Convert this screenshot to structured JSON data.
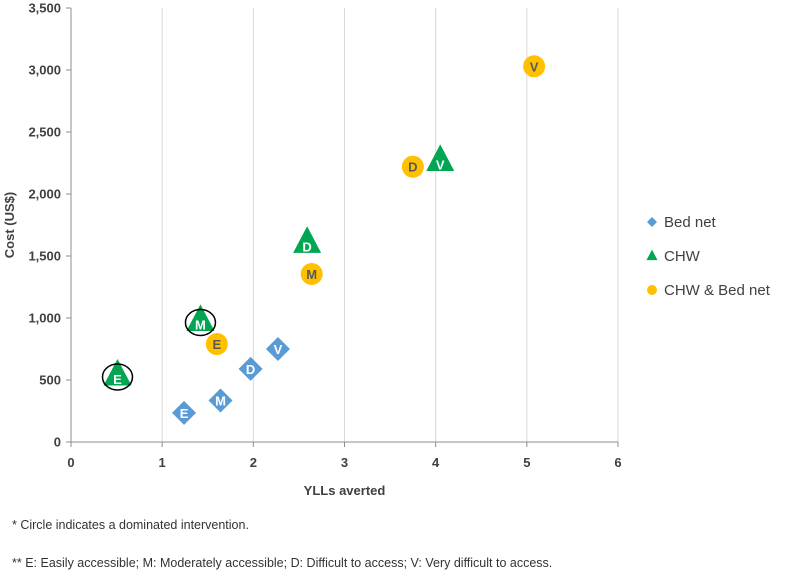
{
  "chart_data": {
    "type": "scatter",
    "xlabel": "YLLs averted",
    "ylabel": "Cost (US$)",
    "xlim": [
      0,
      6
    ],
    "ylim": [
      0,
      3500
    ],
    "xticks": [
      0,
      1,
      2,
      3,
      4,
      5,
      6
    ],
    "yticks": [
      0,
      500,
      1000,
      1500,
      2000,
      2500,
      3000,
      3500
    ],
    "xtick_labels": [
      "0",
      "1",
      "2",
      "3",
      "4",
      "5",
      "6"
    ],
    "ytick_labels": [
      "0",
      "500",
      "1,000",
      "1,500",
      "2,000",
      "2,500",
      "3,000",
      "3,500"
    ],
    "grid": "vertical",
    "legend_position": "right",
    "series": [
      {
        "name": "Bed net",
        "marker": "diamond",
        "color": "#5b9bd5",
        "label_color": "#ffffff",
        "points": [
          {
            "label": "E",
            "x": 1.24,
            "y": 235,
            "dominated": false
          },
          {
            "label": "M",
            "x": 1.64,
            "y": 335,
            "dominated": false
          },
          {
            "label": "D",
            "x": 1.97,
            "y": 590,
            "dominated": false
          },
          {
            "label": "V",
            "x": 2.27,
            "y": 750,
            "dominated": false
          }
        ]
      },
      {
        "name": "CHW",
        "marker": "triangle",
        "color": "#00a651",
        "label_color": "#ffffff",
        "points": [
          {
            "label": "E",
            "x": 0.51,
            "y": 540,
            "dominated": true
          },
          {
            "label": "M",
            "x": 1.42,
            "y": 980,
            "dominated": true
          },
          {
            "label": "D",
            "x": 2.59,
            "y": 1610,
            "dominated": false
          },
          {
            "label": "V",
            "x": 4.05,
            "y": 2270,
            "dominated": false
          }
        ]
      },
      {
        "name": "CHW & Bed net",
        "marker": "circle",
        "color": "#ffc000",
        "label_color": "#595959",
        "points": [
          {
            "label": "E",
            "x": 1.6,
            "y": 790,
            "dominated": false
          },
          {
            "label": "M",
            "x": 2.64,
            "y": 1355,
            "dominated": false
          },
          {
            "label": "D",
            "x": 3.75,
            "y": 2220,
            "dominated": false
          },
          {
            "label": "V",
            "x": 5.08,
            "y": 3030,
            "dominated": false
          }
        ]
      }
    ]
  },
  "footnotes": {
    "note1": "* Circle indicates a dominated intervention.",
    "note2": "** E: Easily accessible; M: Moderately accessible; D: Difficult to access; V: Very difficult to access."
  }
}
